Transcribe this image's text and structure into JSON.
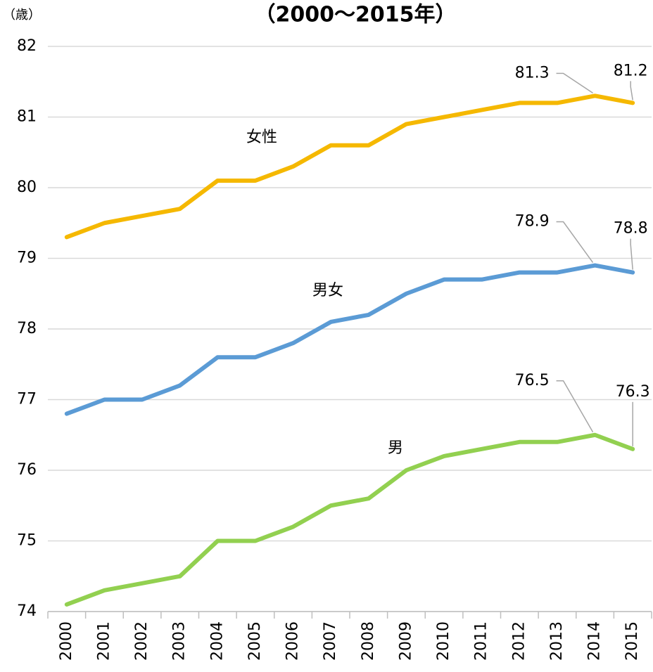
{
  "chart_data": {
    "type": "line",
    "title": "（2000～2015年）",
    "y_label": "（歳）",
    "categories": [
      "2000",
      "2001",
      "2002",
      "2003",
      "2004",
      "2005",
      "2006",
      "2007",
      "2008",
      "2009",
      "2010",
      "2011",
      "2012",
      "2013",
      "2014",
      "2015"
    ],
    "series": [
      {
        "name": "女性",
        "color": "#f5b800",
        "values": [
          79.3,
          79.5,
          79.6,
          79.7,
          80.1,
          80.1,
          80.3,
          80.6,
          80.6,
          80.9,
          81.0,
          81.1,
          81.2,
          81.2,
          81.3,
          81.2
        ]
      },
      {
        "name": "男女",
        "color": "#5b9bd5",
        "values": [
          76.8,
          77.0,
          77.0,
          77.2,
          77.6,
          77.6,
          77.8,
          78.1,
          78.2,
          78.5,
          78.7,
          78.7,
          78.8,
          78.8,
          78.9,
          78.8
        ]
      },
      {
        "name": "男",
        "color": "#92d050",
        "values": [
          74.1,
          74.3,
          74.4,
          74.5,
          75.0,
          75.0,
          75.2,
          75.5,
          75.6,
          76.0,
          76.2,
          76.3,
          76.4,
          76.4,
          76.5,
          76.3
        ]
      }
    ],
    "ylim": [
      74,
      82
    ],
    "yticks": [
      74,
      75,
      76,
      77,
      78,
      79,
      80,
      81,
      82
    ],
    "grid": true
  }
}
